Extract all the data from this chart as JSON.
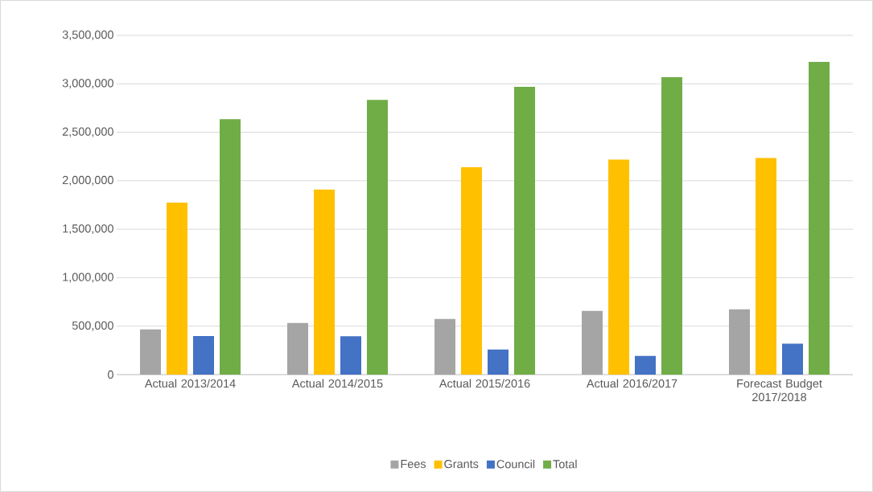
{
  "chart_data": {
    "type": "bar",
    "categories": [
      "Actual 2013/2014",
      "Actual 2014/2015",
      "Actual 2015/2016",
      "Actual 2016/2017",
      "Forecast Budget 2017/2018"
    ],
    "series": [
      {
        "name": "Fees",
        "color": "#a5a5a5",
        "values": [
          466000,
          533000,
          574000,
          657000,
          673000
        ]
      },
      {
        "name": "Grants",
        "color": "#ffc000",
        "values": [
          1775000,
          1910000,
          2139000,
          2219000,
          2236000
        ]
      },
      {
        "name": "Council",
        "color": "#4472c4",
        "values": [
          397000,
          395000,
          259000,
          193000,
          320000
        ]
      },
      {
        "name": "Total",
        "color": "#70ad47",
        "values": [
          2636000,
          2835000,
          2970000,
          3069000,
          3227000
        ]
      }
    ],
    "ylim": [
      0,
      3500000
    ],
    "yticks": [
      0,
      {
        "value": 500000,
        "label": "500,000"
      },
      {
        "value": 1000000,
        "label": "1,000,000"
      },
      {
        "value": 1500000,
        "label": "1,500,000"
      },
      {
        "value": 2000000,
        "label": "2,000,000"
      },
      {
        "value": 2500000,
        "label": "2,500,000"
      },
      {
        "value": 3000000,
        "label": "3,000,000"
      },
      {
        "value": 3500000,
        "label": "3,500,000"
      }
    ],
    "grid": "y",
    "legend": "bottom"
  }
}
